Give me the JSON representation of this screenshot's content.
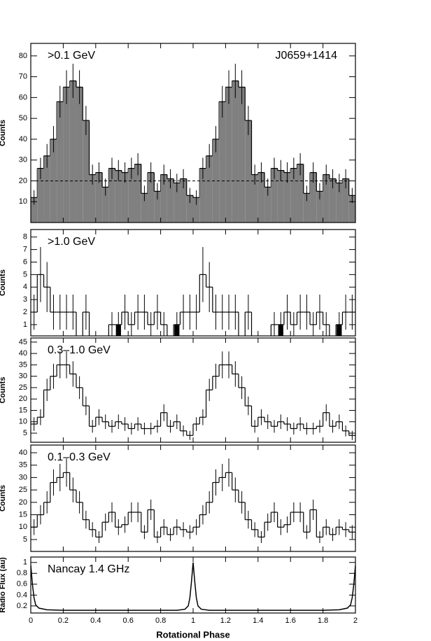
{
  "chart_data": [
    {
      "type": "histogram",
      "label": ">0.1 GeV",
      "annotation": "J0659+1414",
      "ylabel": "Counts",
      "fill": "#808080",
      "color": "#000000",
      "background": 20,
      "xlim": [
        0,
        2
      ],
      "ylim": [
        0,
        86
      ],
      "yticks": [
        10,
        20,
        30,
        40,
        50,
        60,
        70,
        80
      ],
      "bins": [
        0,
        0.04,
        0.08,
        0.12,
        0.16,
        0.2,
        0.24,
        0.28,
        0.32,
        0.36,
        0.4,
        0.44,
        0.48,
        0.52,
        0.56,
        0.6,
        0.64,
        0.68,
        0.72,
        0.76,
        0.8,
        0.84,
        0.88,
        0.92,
        0.96,
        1,
        1.04,
        1.08,
        1.12,
        1.16,
        1.2,
        1.24,
        1.28,
        1.32,
        1.36,
        1.4,
        1.44,
        1.48,
        1.52,
        1.56,
        1.6,
        1.64,
        1.68,
        1.72,
        1.76,
        1.8,
        1.84,
        1.88,
        1.92,
        1.96,
        2
      ],
      "values": [
        12,
        26,
        32,
        40,
        58,
        65,
        68,
        65,
        49,
        23,
        24,
        17,
        26,
        25,
        24,
        26,
        28,
        14,
        24,
        15,
        23,
        21,
        19,
        21,
        13,
        12,
        26,
        32,
        40,
        58,
        65,
        68,
        65,
        49,
        23,
        24,
        17,
        26,
        25,
        24,
        26,
        28,
        14,
        24,
        15,
        23,
        21,
        19,
        21,
        13
      ],
      "errors": [
        3.5,
        5.1,
        5.7,
        6.3,
        7.6,
        8.1,
        8.2,
        8.1,
        7,
        4.8,
        4.9,
        4.1,
        5.1,
        5,
        4.9,
        5.1,
        5.3,
        3.7,
        4.9,
        3.9,
        4.8,
        4.6,
        4.4,
        4.6,
        3.6,
        3.5,
        5.1,
        5.7,
        6.3,
        7.6,
        8.1,
        8.2,
        8.1,
        7,
        4.8,
        4.9,
        4.1,
        5.1,
        5,
        4.9,
        5.1,
        5.3,
        3.7,
        4.9,
        3.9,
        4.8,
        4.6,
        4.4,
        4.6,
        3.6
      ]
    },
    {
      "type": "histogram",
      "label": ">1.0 GeV",
      "ylabel": "Counts",
      "color": "#000000",
      "xlim": [
        0,
        2
      ],
      "ylim": [
        0.1,
        8.6
      ],
      "yticks": [
        1,
        2,
        3,
        4,
        5,
        6,
        7,
        8
      ],
      "bins": [
        0,
        0.04,
        0.08,
        0.12,
        0.16,
        0.2,
        0.24,
        0.28,
        0.32,
        0.36,
        0.4,
        0.44,
        0.48,
        0.52,
        0.56,
        0.6,
        0.64,
        0.68,
        0.72,
        0.76,
        0.8,
        0.84,
        0.88,
        0.92,
        0.96,
        1,
        1.04,
        1.08,
        1.12,
        1.16,
        1.2,
        1.24,
        1.28,
        1.32,
        1.36,
        1.4,
        1.44,
        1.48,
        1.52,
        1.56,
        1.6,
        1.64,
        1.68,
        1.72,
        1.76,
        1.8,
        1.84,
        1.88,
        1.92,
        1.96,
        2
      ],
      "values": [
        2,
        5,
        4,
        2,
        2,
        2,
        2,
        0,
        2,
        0,
        0,
        0,
        1,
        1,
        2,
        1,
        2,
        2,
        1,
        2,
        1,
        0,
        1,
        2,
        2,
        2,
        5,
        4,
        2,
        2,
        2,
        2,
        0,
        2,
        0,
        0,
        0,
        1,
        1,
        2,
        1,
        2,
        2,
        1,
        2,
        1,
        0,
        1,
        2,
        2
      ],
      "errors": [
        1.4,
        2.2,
        2,
        1.4,
        1.4,
        1.4,
        1.4,
        0,
        1.4,
        0,
        0,
        0,
        1,
        1,
        1.4,
        1,
        1.4,
        1.4,
        1,
        1.4,
        1,
        0,
        1,
        1.4,
        1.4,
        1.4,
        2.2,
        2,
        1.4,
        1.4,
        1.4,
        1.4,
        0,
        1.4,
        0,
        0,
        0,
        1,
        1,
        1.4,
        1,
        1.4,
        1.4,
        1,
        1.4,
        1,
        0,
        1,
        1.4,
        1.4
      ],
      "highlight": {
        "color": "#000000",
        "values": [
          null,
          null,
          null,
          null,
          null,
          null,
          null,
          null,
          null,
          null,
          null,
          null,
          null,
          1,
          null,
          null,
          null,
          null,
          null,
          null,
          null,
          null,
          1,
          null,
          null,
          null,
          null,
          null,
          null,
          null,
          null,
          null,
          null,
          null,
          null,
          null,
          null,
          null,
          1,
          null,
          null,
          null,
          null,
          null,
          null,
          null,
          null,
          1,
          null,
          null
        ]
      }
    },
    {
      "type": "histogram",
      "label": "0.3–1.0 GeV",
      "ylabel": "Counts",
      "color": "#000000",
      "xlim": [
        0,
        2
      ],
      "ylim": [
        1,
        46.8
      ],
      "yticks": [
        5,
        10,
        15,
        20,
        25,
        30,
        35,
        40,
        45
      ],
      "bins": [
        0,
        0.04,
        0.08,
        0.12,
        0.16,
        0.2,
        0.24,
        0.28,
        0.32,
        0.36,
        0.4,
        0.44,
        0.48,
        0.52,
        0.56,
        0.6,
        0.64,
        0.68,
        0.72,
        0.76,
        0.8,
        0.84,
        0.88,
        0.92,
        0.96,
        1,
        1.04,
        1.08,
        1.12,
        1.16,
        1.2,
        1.24,
        1.28,
        1.32,
        1.36,
        1.4,
        1.44,
        1.48,
        1.52,
        1.56,
        1.6,
        1.64,
        1.68,
        1.72,
        1.76,
        1.8,
        1.84,
        1.88,
        1.92,
        1.96,
        2
      ],
      "values": [
        9,
        12,
        24,
        30,
        35,
        35,
        31,
        25,
        17,
        8,
        12,
        10,
        8,
        10,
        9,
        7,
        9,
        7,
        7,
        8,
        14,
        8,
        10,
        6,
        4,
        9,
        12,
        24,
        30,
        35,
        35,
        31,
        25,
        17,
        8,
        12,
        10,
        8,
        10,
        9,
        7,
        9,
        7,
        7,
        8,
        14,
        8,
        10,
        6,
        4
      ],
      "errors": [
        3,
        3.5,
        4.9,
        5.5,
        5.9,
        5.9,
        5.6,
        5,
        4.1,
        2.8,
        3.5,
        3.2,
        2.8,
        3.2,
        3,
        2.6,
        3,
        2.6,
        2.6,
        2.8,
        3.7,
        2.8,
        3.2,
        2.4,
        2,
        3,
        3.5,
        4.9,
        5.5,
        5.9,
        5.9,
        5.6,
        5,
        4.1,
        2.8,
        3.5,
        3.2,
        2.8,
        3.2,
        3,
        2.6,
        3,
        2.6,
        2.6,
        2.8,
        3.7,
        2.8,
        3.2,
        2.4,
        2
      ]
    },
    {
      "type": "histogram",
      "label": "0.1–0.3 GeV",
      "ylabel": "Counts",
      "color": "#000000",
      "xlim": [
        0,
        2
      ],
      "ylim": [
        0.2,
        43.1
      ],
      "yticks": [
        5,
        10,
        15,
        20,
        25,
        30,
        35,
        40
      ],
      "bins": [
        0,
        0.04,
        0.08,
        0.12,
        0.16,
        0.2,
        0.24,
        0.28,
        0.32,
        0.36,
        0.4,
        0.44,
        0.48,
        0.52,
        0.56,
        0.6,
        0.64,
        0.68,
        0.72,
        0.76,
        0.8,
        0.84,
        0.88,
        0.92,
        0.96,
        1,
        1.04,
        1.08,
        1.12,
        1.16,
        1.2,
        1.24,
        1.28,
        1.32,
        1.36,
        1.4,
        1.44,
        1.48,
        1.52,
        1.56,
        1.6,
        1.64,
        1.68,
        1.72,
        1.76,
        1.8,
        1.84,
        1.88,
        1.92,
        1.96,
        2
      ],
      "values": [
        10,
        15,
        20,
        28,
        30,
        32,
        25,
        20,
        13,
        9,
        6,
        12,
        16,
        10,
        11,
        16,
        16,
        8,
        17,
        6,
        10,
        7,
        10,
        9,
        8,
        10,
        15,
        20,
        28,
        30,
        32,
        25,
        20,
        13,
        9,
        6,
        12,
        16,
        10,
        11,
        16,
        16,
        8,
        17,
        6,
        10,
        7,
        10,
        9,
        8
      ],
      "errors": [
        3.2,
        3.9,
        4.5,
        5.3,
        5.5,
        5.7,
        5,
        4.5,
        3.6,
        3,
        2.4,
        3.5,
        4,
        3.2,
        3.3,
        4,
        4,
        2.8,
        4.1,
        2.4,
        3.2,
        2.6,
        3.2,
        3,
        2.8,
        3.2,
        3.9,
        4.5,
        5.3,
        5.5,
        5.7,
        5,
        4.5,
        3.6,
        3,
        2.4,
        3.5,
        4,
        3.2,
        3.3,
        4,
        4,
        2.8,
        4.1,
        2.4,
        3.2,
        2.6,
        3.2,
        3,
        2.8
      ]
    },
    {
      "type": "line",
      "label": "Nancay 1.4 GHz",
      "ylabel": "Radio Flux (au)",
      "xlabel": "Rotational Phase",
      "color": "#000000",
      "xlim": [
        0,
        2
      ],
      "ylim": [
        0.07,
        1.1
      ],
      "yticks": [
        0.2,
        0.4,
        0.6,
        0.8,
        1
      ],
      "xticks": [
        0,
        0.2,
        0.4,
        0.6,
        0.8,
        1,
        1.2,
        1.4,
        1.6,
        1.8,
        2
      ],
      "x": [
        0,
        0.01,
        0.02,
        0.03,
        0.05,
        0.1,
        0.2,
        0.4,
        0.6,
        0.8,
        0.9,
        0.95,
        0.97,
        0.98,
        0.99,
        1,
        1.01,
        1.02,
        1.03,
        1.05,
        1.1,
        1.2,
        1.4,
        1.6,
        1.8,
        1.9,
        1.95,
        1.97,
        1.98,
        1.99,
        2
      ],
      "values": [
        0.95,
        0.6,
        0.35,
        0.22,
        0.16,
        0.13,
        0.12,
        0.12,
        0.12,
        0.12,
        0.12,
        0.14,
        0.2,
        0.35,
        0.65,
        1,
        0.65,
        0.35,
        0.2,
        0.14,
        0.12,
        0.12,
        0.12,
        0.12,
        0.12,
        0.13,
        0.16,
        0.22,
        0.35,
        0.6,
        0.95
      ]
    }
  ]
}
